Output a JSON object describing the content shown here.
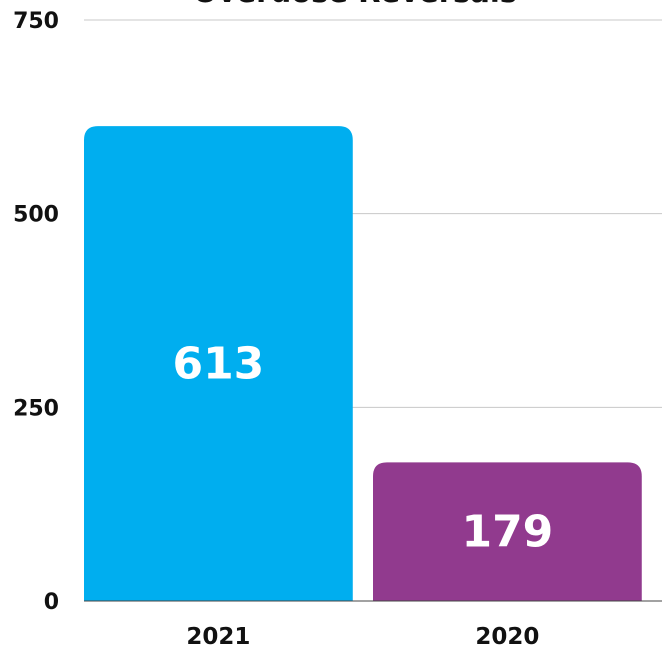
{
  "chart_data": {
    "type": "bar",
    "title": "Overdose Reversals",
    "categories": [
      "2021",
      "2020"
    ],
    "values": [
      613,
      179
    ],
    "data_labels": [
      "613",
      "179"
    ],
    "colors": [
      "#00aeef",
      "#913a8e"
    ],
    "ylim": [
      0,
      750
    ],
    "yticks": [
      "0",
      "250",
      "500",
      "750"
    ],
    "grid": true,
    "xlabel": "",
    "ylabel": ""
  }
}
